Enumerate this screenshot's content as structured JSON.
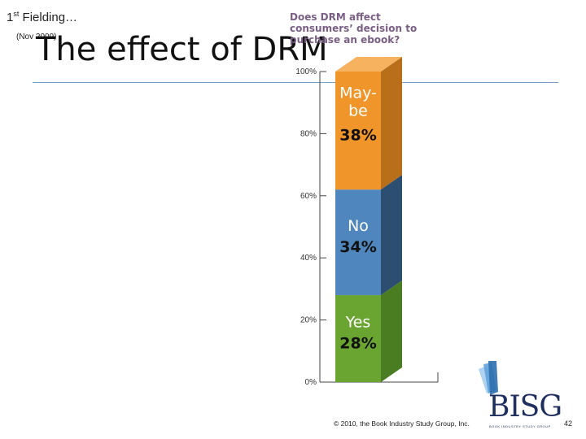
{
  "slide": {
    "fielding": "1st Fielding…",
    "fielding_ordinal": "st",
    "fielding_label_a": "1",
    "fielding_label_b": " Fielding…",
    "date": "(Nov 2009)",
    "title": "The effect of DRM",
    "copyright": "© 2010, the Book Industry Study Group, Inc.",
    "page_number": "42",
    "logo_text": "BISG",
    "logo_subtext": "BOOK INDUSTRY STUDY GROUP"
  },
  "chart_data": {
    "type": "bar",
    "stacked": true,
    "title": "Does DRM affect consumers’ decision to purchase an ebook?",
    "categories": [
      ""
    ],
    "series": [
      {
        "name": "Yes",
        "values": [
          28
        ],
        "label": "28%",
        "color": "#6aa531"
      },
      {
        "name": "No",
        "values": [
          34
        ],
        "label": "34%",
        "color": "#4f86bd"
      },
      {
        "name": "May- be",
        "values": [
          38
        ],
        "label": "38%",
        "color": "#f0952a"
      }
    ],
    "segment_labels": [
      {
        "lines": [
          "Yes"
        ],
        "value": "28%"
      },
      {
        "lines": [
          "No"
        ],
        "value": "34%"
      },
      {
        "lines": [
          "May-",
          "be"
        ],
        "value": "38%"
      }
    ],
    "yticks": [
      "0%",
      "20%",
      "40%",
      "60%",
      "80%",
      "100%"
    ],
    "ylim": [
      0,
      100
    ],
    "colors": {
      "side": [
        "#4a7d22",
        "#2c4e70",
        "#b96e1a"
      ],
      "text": "#ffffff",
      "value_text": "#111111"
    }
  }
}
